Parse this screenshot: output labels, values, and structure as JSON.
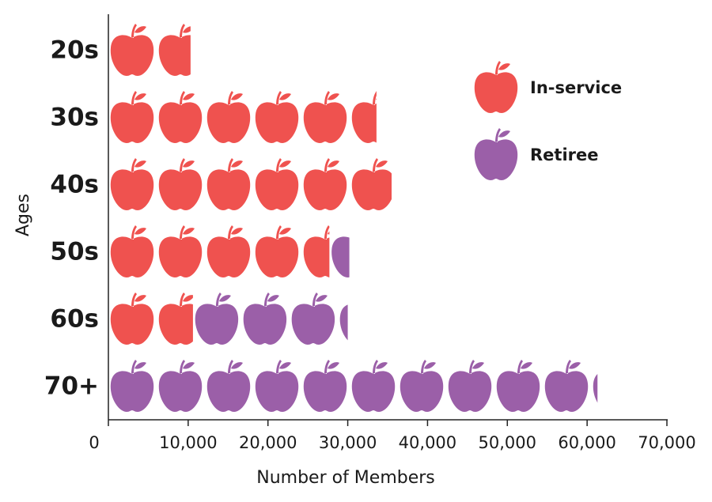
{
  "chart_data": {
    "type": "pictograph-bar",
    "x_label": "Number of Members",
    "y_label": "Ages",
    "categories": [
      "20s",
      "30s",
      "40s",
      "50s",
      "60s",
      "70+"
    ],
    "series": [
      {
        "name": "In-service",
        "color": "#ef524f",
        "values": [
          10300,
          33600,
          35500,
          27700,
          10600,
          0
        ]
      },
      {
        "name": "Retiree",
        "color": "#9b5fa8",
        "values": [
          0,
          0,
          0,
          2500,
          19400,
          61300
        ]
      }
    ],
    "xlim": [
      0,
      70000
    ],
    "xticks": [
      0,
      {
        "value": 10000,
        "label": "10,000"
      },
      {
        "value": 20000,
        "label": "20,000"
      },
      {
        "value": 30000,
        "label": "30,000"
      },
      {
        "value": 40000,
        "label": "40,000"
      },
      {
        "value": 50000,
        "label": "50,000"
      },
      {
        "value": 60000,
        "label": "60,000"
      },
      {
        "value": 70000,
        "label": "70,000"
      }
    ],
    "legend": "upper right"
  }
}
